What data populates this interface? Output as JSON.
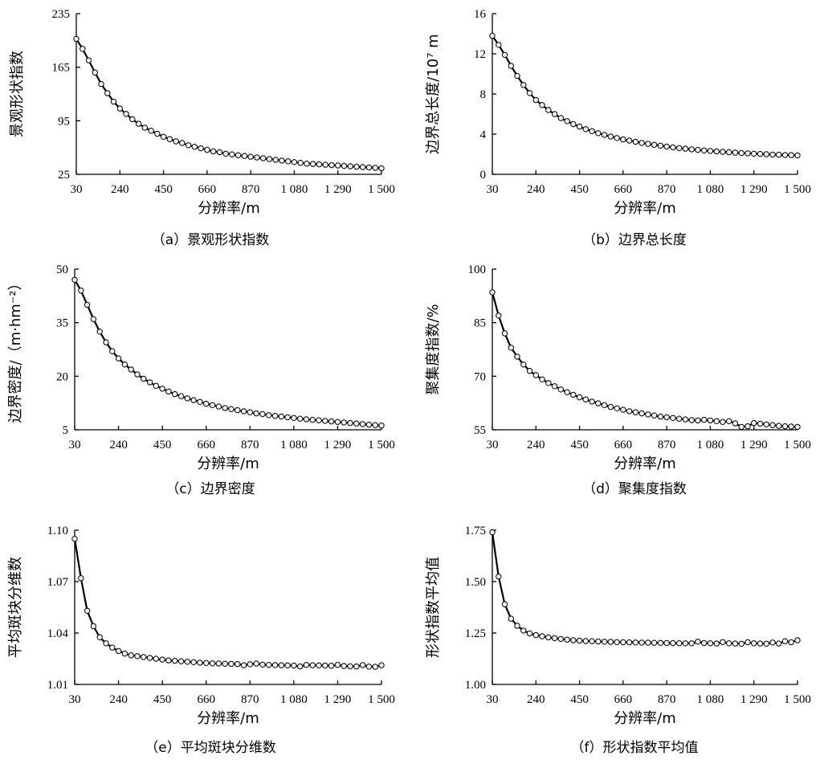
{
  "chart_data": [
    {
      "type": "line",
      "caption": "（a）景观形状指数",
      "xlabel": "分辨率/m",
      "ylabel": "景观形状指数",
      "xticks": [
        30,
        240,
        450,
        660,
        870,
        1080,
        1290,
        1500
      ],
      "xtick_labels": [
        "30",
        "240",
        "450",
        "660",
        "870",
        "1 080",
        "1 290",
        "1 500"
      ],
      "yticks": [
        25,
        95,
        165,
        235
      ],
      "ytick_labels": [
        "25",
        "95",
        "165",
        "235"
      ],
      "xlim": [
        30,
        1500
      ],
      "ylim": [
        25,
        235
      ],
      "x": [
        30,
        60,
        90,
        120,
        150,
        180,
        210,
        240,
        270,
        300,
        330,
        360,
        390,
        420,
        450,
        480,
        510,
        540,
        570,
        600,
        630,
        660,
        690,
        720,
        750,
        780,
        810,
        840,
        870,
        900,
        930,
        960,
        990,
        1020,
        1050,
        1080,
        1110,
        1140,
        1170,
        1200,
        1230,
        1260,
        1290,
        1320,
        1350,
        1380,
        1410,
        1440,
        1470,
        1500
      ],
      "values": [
        202,
        189,
        174,
        158,
        143,
        131,
        120,
        111,
        104,
        97,
        91,
        86,
        82,
        78,
        74,
        71,
        68,
        66,
        63,
        61,
        59,
        57,
        55,
        54,
        52,
        51,
        50,
        49,
        48,
        47,
        46,
        45,
        44,
        43,
        42,
        41,
        40,
        39,
        38.5,
        38,
        37.5,
        37,
        36.5,
        36,
        35.5,
        35,
        34.5,
        34,
        33.5,
        33
      ]
    },
    {
      "type": "line",
      "caption": "（b）边界总长度",
      "xlabel": "分辨率/m",
      "ylabel": "边界总长度/10⁷ m",
      "xticks": [
        30,
        240,
        450,
        660,
        870,
        1080,
        1290,
        1500
      ],
      "xtick_labels": [
        "30",
        "240",
        "450",
        "660",
        "870",
        "1 080",
        "1 290",
        "1 500"
      ],
      "yticks": [
        0,
        4,
        8,
        12,
        16
      ],
      "ytick_labels": [
        "0",
        "4",
        "8",
        "12",
        "16"
      ],
      "xlim": [
        30,
        1500
      ],
      "ylim": [
        0,
        16
      ],
      "x": [
        30,
        60,
        90,
        120,
        150,
        180,
        210,
        240,
        270,
        300,
        330,
        360,
        390,
        420,
        450,
        480,
        510,
        540,
        570,
        600,
        630,
        660,
        690,
        720,
        750,
        780,
        810,
        840,
        870,
        900,
        930,
        960,
        990,
        1020,
        1050,
        1080,
        1110,
        1140,
        1170,
        1200,
        1230,
        1260,
        1290,
        1320,
        1350,
        1380,
        1410,
        1440,
        1470,
        1500
      ],
      "values": [
        13.8,
        12.9,
        11.9,
        10.8,
        9.8,
        8.9,
        8.1,
        7.4,
        6.9,
        6.4,
        6.0,
        5.6,
        5.3,
        5.0,
        4.75,
        4.5,
        4.3,
        4.1,
        3.93,
        3.77,
        3.62,
        3.48,
        3.36,
        3.24,
        3.13,
        3.03,
        2.94,
        2.85,
        2.77,
        2.69,
        2.62,
        2.55,
        2.49,
        2.43,
        2.38,
        2.33,
        2.28,
        2.24,
        2.2,
        2.16,
        2.12,
        2.09,
        2.06,
        2.03,
        2.0,
        1.97,
        1.95,
        1.93,
        1.91,
        1.89
      ]
    },
    {
      "type": "line",
      "caption": "（c）边界密度",
      "xlabel": "分辨率/m",
      "ylabel": "边界密度/（m·hm⁻²）",
      "xticks": [
        30,
        240,
        450,
        660,
        870,
        1080,
        1290,
        1500
      ],
      "xtick_labels": [
        "30",
        "240",
        "450",
        "660",
        "870",
        "1 080",
        "1 290",
        "1 500"
      ],
      "yticks": [
        5,
        20,
        35,
        50
      ],
      "ytick_labels": [
        "5",
        "20",
        "35",
        "50"
      ],
      "xlim": [
        30,
        1500
      ],
      "ylim": [
        5,
        50
      ],
      "x": [
        30,
        60,
        90,
        120,
        150,
        180,
        210,
        240,
        270,
        300,
        330,
        360,
        390,
        420,
        450,
        480,
        510,
        540,
        570,
        600,
        630,
        660,
        690,
        720,
        750,
        780,
        810,
        840,
        870,
        900,
        930,
        960,
        990,
        1020,
        1050,
        1080,
        1110,
        1140,
        1170,
        1200,
        1230,
        1260,
        1290,
        1320,
        1350,
        1380,
        1410,
        1440,
        1470,
        1500
      ],
      "values": [
        47,
        44,
        40,
        36,
        32.5,
        29.5,
        27,
        25,
        23.3,
        21.9,
        20.5,
        19.3,
        18.3,
        17.3,
        16.5,
        15.7,
        15,
        14.4,
        13.8,
        13.3,
        12.8,
        12.3,
        11.9,
        11.5,
        11.1,
        10.8,
        10.5,
        10.2,
        9.9,
        9.6,
        9.4,
        9.1,
        8.9,
        8.7,
        8.5,
        8.3,
        8.1,
        7.95,
        7.8,
        7.65,
        7.5,
        7.35,
        7.2,
        7.05,
        6.9,
        6.75,
        6.6,
        6.45,
        6.3,
        6.2
      ]
    },
    {
      "type": "line",
      "caption": "（d）聚集度指数",
      "xlabel": "分辨率/m",
      "ylabel": "聚集度指数/%",
      "xticks": [
        30,
        240,
        450,
        660,
        870,
        1080,
        1290,
        1500
      ],
      "xtick_labels": [
        "30",
        "240",
        "450",
        "660",
        "870",
        "1 080",
        "1 290",
        "1 500"
      ],
      "yticks": [
        55,
        70,
        85,
        100
      ],
      "ytick_labels": [
        "55",
        "70",
        "85",
        "100"
      ],
      "xlim": [
        30,
        1500
      ],
      "ylim": [
        55,
        100
      ],
      "x": [
        30,
        60,
        90,
        120,
        150,
        180,
        210,
        240,
        270,
        300,
        330,
        360,
        390,
        420,
        450,
        480,
        510,
        540,
        570,
        600,
        630,
        660,
        690,
        720,
        750,
        780,
        810,
        840,
        870,
        900,
        930,
        960,
        990,
        1020,
        1050,
        1080,
        1110,
        1140,
        1170,
        1200,
        1230,
        1260,
        1290,
        1320,
        1350,
        1380,
        1410,
        1440,
        1470,
        1500
      ],
      "values": [
        93.5,
        87,
        82,
        78,
        75.5,
        73.3,
        71.5,
        70.3,
        69.1,
        68.1,
        67.2,
        66.3,
        65.5,
        64.8,
        64.1,
        63.5,
        62.9,
        62.4,
        61.9,
        61.4,
        61.0,
        60.6,
        60.2,
        59.9,
        59.6,
        59.3,
        59.0,
        58.7,
        58.5,
        58.3,
        58.1,
        57.9,
        57.7,
        57.6,
        57.8,
        57.6,
        57.4,
        57.2,
        57.4,
        56.8,
        55.8,
        56.0,
        56.9,
        56.7,
        56.5,
        56.3,
        56.1,
        56.0,
        55.9,
        55.8
      ]
    },
    {
      "type": "line",
      "caption": "（e）平均斑块分维数",
      "xlabel": "分辨率/m",
      "ylabel": "平均斑块分维数",
      "xticks": [
        30,
        240,
        450,
        660,
        870,
        1080,
        1290,
        1500
      ],
      "xtick_labels": [
        "30",
        "240",
        "450",
        "660",
        "870",
        "1 080",
        "1 290",
        "1 500"
      ],
      "yticks": [
        1.01,
        1.04,
        1.07,
        1.1
      ],
      "ytick_labels": [
        "1.01",
        "1.04",
        "1.07",
        "1.10"
      ],
      "xlim": [
        30,
        1500
      ],
      "ylim": [
        1.01,
        1.1
      ],
      "x": [
        30,
        60,
        90,
        120,
        150,
        180,
        210,
        240,
        270,
        300,
        330,
        360,
        390,
        420,
        450,
        480,
        510,
        540,
        570,
        600,
        630,
        660,
        690,
        720,
        750,
        780,
        810,
        840,
        870,
        900,
        930,
        960,
        990,
        1020,
        1050,
        1080,
        1110,
        1140,
        1170,
        1200,
        1230,
        1260,
        1290,
        1320,
        1350,
        1380,
        1410,
        1440,
        1470,
        1500
      ],
      "values": [
        1.095,
        1.072,
        1.053,
        1.044,
        1.0375,
        1.034,
        1.0315,
        1.0295,
        1.028,
        1.027,
        1.0265,
        1.026,
        1.0255,
        1.025,
        1.0245,
        1.024,
        1.0238,
        1.0235,
        1.0232,
        1.023,
        1.0227,
        1.0225,
        1.0223,
        1.0222,
        1.0221,
        1.022,
        1.0219,
        1.0212,
        1.0218,
        1.0222,
        1.0216,
        1.0214,
        1.0213,
        1.0212,
        1.0211,
        1.021,
        1.0205,
        1.0214,
        1.0212,
        1.0211,
        1.021,
        1.0209,
        1.0214,
        1.0208,
        1.0206,
        1.0205,
        1.0213,
        1.0204,
        1.0203,
        1.0212
      ]
    },
    {
      "type": "line",
      "caption": "（f）形状指数平均值",
      "xlabel": "分辨率/m",
      "ylabel": "形状指数平均值",
      "xticks": [
        30,
        240,
        450,
        660,
        870,
        1080,
        1290,
        1500
      ],
      "xtick_labels": [
        "30",
        "240",
        "450",
        "660",
        "870",
        "1 080",
        "1 290",
        "1 500"
      ],
      "yticks": [
        1.0,
        1.25,
        1.5,
        1.75
      ],
      "ytick_labels": [
        "1.00",
        "1.25",
        "1.50",
        "1.75"
      ],
      "xlim": [
        30,
        1500
      ],
      "ylim": [
        1.0,
        1.75
      ],
      "x": [
        30,
        60,
        90,
        120,
        150,
        180,
        210,
        240,
        270,
        300,
        330,
        360,
        390,
        420,
        450,
        480,
        510,
        540,
        570,
        600,
        630,
        660,
        690,
        720,
        750,
        780,
        810,
        840,
        870,
        900,
        930,
        960,
        990,
        1020,
        1050,
        1080,
        1110,
        1140,
        1170,
        1200,
        1230,
        1260,
        1290,
        1320,
        1350,
        1380,
        1410,
        1440,
        1470,
        1500
      ],
      "values": [
        1.74,
        1.525,
        1.39,
        1.32,
        1.285,
        1.262,
        1.248,
        1.24,
        1.234,
        1.229,
        1.225,
        1.221,
        1.218,
        1.215,
        1.213,
        1.211,
        1.21,
        1.209,
        1.208,
        1.207,
        1.206,
        1.205,
        1.2045,
        1.204,
        1.2035,
        1.203,
        1.2025,
        1.202,
        1.2015,
        1.201,
        1.2005,
        1.2,
        1.2,
        1.208,
        1.201,
        1.2,
        1.199,
        1.206,
        1.2,
        1.199,
        1.198,
        1.205,
        1.2,
        1.199,
        1.198,
        1.204,
        1.199,
        1.21,
        1.205,
        1.215
      ]
    }
  ]
}
